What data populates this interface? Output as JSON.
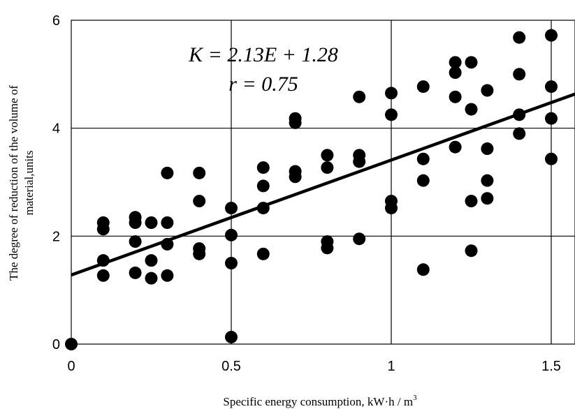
{
  "chart_data": {
    "type": "scatter",
    "xlabel": "Specific energy consumption,  kW·h / m",
    "xlabel_sup": "3",
    "ylabel_line1": "The degree of reduction of the volume of",
    "ylabel_line2": "material,units",
    "xlim": [
      0,
      1.6
    ],
    "ylim": [
      0,
      6
    ],
    "x_ticks": [
      0,
      0.5,
      1,
      1.5
    ],
    "x_tick_labels": [
      "0",
      "0.5",
      "1",
      "1.5"
    ],
    "y_ticks": [
      0,
      2,
      4,
      6
    ],
    "y_tick_labels": [
      "0",
      "2",
      "4",
      "6"
    ],
    "grid": true,
    "regression": {
      "slope": 2.13,
      "intercept": 1.28
    },
    "annotations": [
      "K = 2.13E + 1.28",
      "r = 0.75"
    ],
    "series": [
      {
        "points": [
          [
            0,
            0
          ],
          [
            0.1,
            2.25
          ],
          [
            0.1,
            2.13
          ],
          [
            0.1,
            1.55
          ],
          [
            0.1,
            1.27
          ],
          [
            0.2,
            2.35
          ],
          [
            0.2,
            2.25
          ],
          [
            0.2,
            1.9
          ],
          [
            0.2,
            1.32
          ],
          [
            0.25,
            2.25
          ],
          [
            0.25,
            1.55
          ],
          [
            0.25,
            1.22
          ],
          [
            0.3,
            3.17
          ],
          [
            0.3,
            2.25
          ],
          [
            0.3,
            1.85
          ],
          [
            0.3,
            1.27
          ],
          [
            0.4,
            3.17
          ],
          [
            0.4,
            2.65
          ],
          [
            0.4,
            1.77
          ],
          [
            0.4,
            1.67
          ],
          [
            0.5,
            2.52
          ],
          [
            0.5,
            2.02
          ],
          [
            0.5,
            1.5
          ],
          [
            0.5,
            0.13
          ],
          [
            0.6,
            3.27
          ],
          [
            0.6,
            2.93
          ],
          [
            0.6,
            2.52
          ],
          [
            0.6,
            1.67
          ],
          [
            0.7,
            4.18
          ],
          [
            0.7,
            4.1
          ],
          [
            0.7,
            3.2
          ],
          [
            0.7,
            3.1
          ],
          [
            0.8,
            3.5
          ],
          [
            0.8,
            3.27
          ],
          [
            0.8,
            1.9
          ],
          [
            0.8,
            1.78
          ],
          [
            0.9,
            4.58
          ],
          [
            0.9,
            3.5
          ],
          [
            0.9,
            3.38
          ],
          [
            0.9,
            1.95
          ],
          [
            1.0,
            4.65
          ],
          [
            1.0,
            4.25
          ],
          [
            1.0,
            2.65
          ],
          [
            1.0,
            2.52
          ],
          [
            1.1,
            4.77
          ],
          [
            1.1,
            3.43
          ],
          [
            1.1,
            3.03
          ],
          [
            1.1,
            1.38
          ],
          [
            1.2,
            5.22
          ],
          [
            1.2,
            5.03
          ],
          [
            1.2,
            4.58
          ],
          [
            1.2,
            3.65
          ],
          [
            1.25,
            5.22
          ],
          [
            1.25,
            4.35
          ],
          [
            1.25,
            2.65
          ],
          [
            1.25,
            1.73
          ],
          [
            1.3,
            4.7
          ],
          [
            1.3,
            3.62
          ],
          [
            1.3,
            3.03
          ],
          [
            1.3,
            2.7
          ],
          [
            1.4,
            5.68
          ],
          [
            1.4,
            5.0
          ],
          [
            1.4,
            4.25
          ],
          [
            1.4,
            3.9
          ],
          [
            1.5,
            5.72
          ],
          [
            1.5,
            4.77
          ],
          [
            1.5,
            4.18
          ],
          [
            1.5,
            3.43
          ]
        ]
      }
    ]
  }
}
